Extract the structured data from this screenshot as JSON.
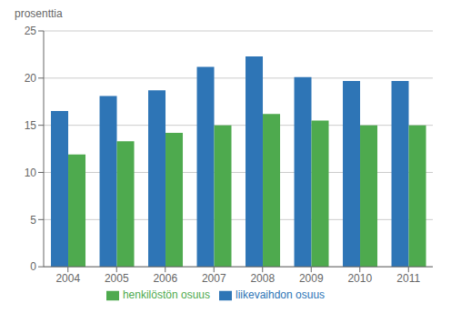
{
  "chart_data": {
    "type": "bar",
    "ylabel": "prosenttia",
    "categories": [
      "2004",
      "2005",
      "2006",
      "2007",
      "2008",
      "2009",
      "2010",
      "2011"
    ],
    "series": [
      {
        "name": "liikevaihdon osuus",
        "color": "#2E75B6",
        "values": [
          16.5,
          18.1,
          18.7,
          21.2,
          22.3,
          20.1,
          19.7,
          19.7
        ]
      },
      {
        "name": "henkilöstön osuus",
        "color": "#4EAA4E",
        "values": [
          11.9,
          13.3,
          14.2,
          15.0,
          16.2,
          15.5,
          15.0,
          15.0
        ]
      }
    ],
    "ylim": [
      0,
      25
    ],
    "yticks": [
      0,
      5,
      10,
      15,
      20,
      25
    ],
    "grid": true,
    "legend": "bottom"
  }
}
